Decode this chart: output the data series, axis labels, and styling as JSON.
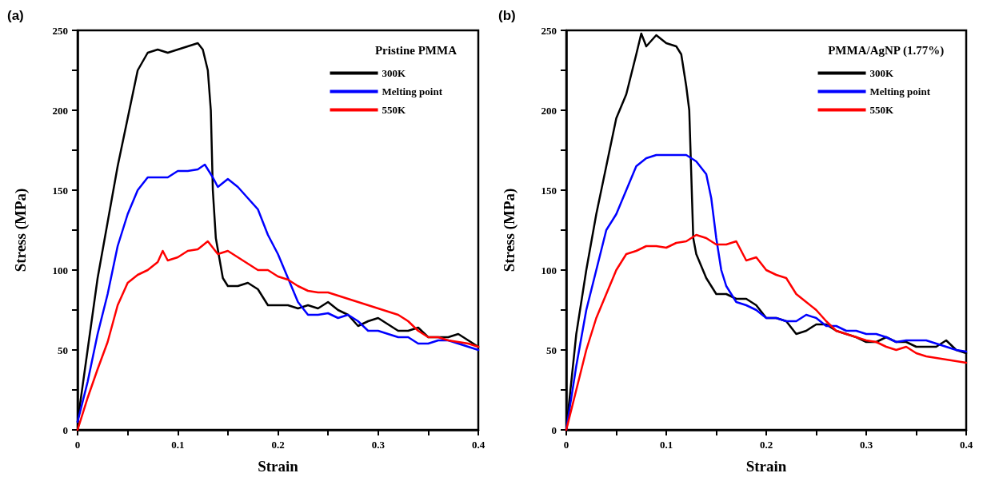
{
  "chart_data": [
    {
      "type": "line",
      "annotations": [
        "(a)"
      ],
      "legend_title": "Pristine PMMA",
      "xlabel": "Strain",
      "ylabel": "Stress (MPa)",
      "legend": "top right",
      "grid": false,
      "xlim": [
        0,
        0.4
      ],
      "xticks": [
        0,
        {
          "value": 0.05,
          "label": null
        },
        0.1,
        {
          "value": 0.15,
          "label": null
        },
        0.2,
        {
          "value": 0.25,
          "label": null
        },
        0.3,
        {
          "value": 0.35,
          "label": null
        },
        0.4
      ],
      "ylim": [
        0,
        250
      ],
      "yticks": [
        0,
        {
          "value": 25,
          "label": null
        },
        50,
        {
          "value": 75,
          "label": null
        },
        100,
        {
          "value": 125,
          "label": null
        },
        150,
        {
          "value": 175,
          "label": null
        },
        200,
        {
          "value": 225,
          "label": null
        },
        250
      ],
      "series": [
        {
          "name": "300K",
          "color": "#000000",
          "x": [
            0,
            0.01,
            0.02,
            0.03,
            0.04,
            0.05,
            0.06,
            0.07,
            0.08,
            0.09,
            0.1,
            0.11,
            0.12,
            0.125,
            0.13,
            0.133,
            0.135,
            0.138,
            0.145,
            0.15,
            0.16,
            0.17,
            0.18,
            0.19,
            0.2,
            0.21,
            0.22,
            0.23,
            0.24,
            0.25,
            0.26,
            0.27,
            0.28,
            0.29,
            0.3,
            0.31,
            0.32,
            0.33,
            0.34,
            0.35,
            0.36,
            0.37,
            0.38,
            0.39,
            0.4
          ],
          "values": [
            5,
            50,
            95,
            130,
            165,
            195,
            225,
            236,
            238,
            236,
            238,
            240,
            242,
            238,
            225,
            200,
            150,
            120,
            95,
            90,
            90,
            92,
            88,
            78,
            78,
            78,
            76,
            78,
            76,
            80,
            75,
            72,
            65,
            68,
            70,
            66,
            62,
            62,
            64,
            58,
            58,
            58,
            60,
            56,
            52
          ]
        },
        {
          "name": "Melting point",
          "color": "#0000ff",
          "x": [
            0,
            0.01,
            0.02,
            0.03,
            0.04,
            0.05,
            0.06,
            0.07,
            0.08,
            0.09,
            0.1,
            0.11,
            0.12,
            0.127,
            0.135,
            0.14,
            0.15,
            0.16,
            0.17,
            0.18,
            0.19,
            0.2,
            0.21,
            0.22,
            0.23,
            0.24,
            0.25,
            0.26,
            0.27,
            0.28,
            0.29,
            0.3,
            0.31,
            0.32,
            0.33,
            0.34,
            0.35,
            0.36,
            0.37,
            0.38,
            0.39,
            0.4
          ],
          "values": [
            5,
            30,
            60,
            85,
            115,
            135,
            150,
            158,
            158,
            158,
            162,
            162,
            163,
            166,
            158,
            152,
            157,
            152,
            145,
            138,
            122,
            110,
            95,
            80,
            72,
            72,
            73,
            70,
            72,
            68,
            62,
            62,
            60,
            58,
            58,
            54,
            54,
            56,
            56,
            54,
            52,
            50
          ]
        },
        {
          "name": "550K",
          "color": "#ff0000",
          "x": [
            0,
            0.01,
            0.02,
            0.03,
            0.04,
            0.05,
            0.06,
            0.07,
            0.08,
            0.085,
            0.09,
            0.1,
            0.11,
            0.12,
            0.13,
            0.14,
            0.15,
            0.16,
            0.17,
            0.18,
            0.19,
            0.2,
            0.21,
            0.22,
            0.23,
            0.24,
            0.25,
            0.26,
            0.27,
            0.28,
            0.29,
            0.3,
            0.31,
            0.32,
            0.33,
            0.34,
            0.35,
            0.36,
            0.37,
            0.38,
            0.39,
            0.4
          ],
          "values": [
            0,
            20,
            38,
            55,
            78,
            92,
            97,
            100,
            105,
            112,
            106,
            108,
            112,
            113,
            118,
            110,
            112,
            108,
            104,
            100,
            100,
            96,
            94,
            90,
            87,
            86,
            86,
            84,
            82,
            80,
            78,
            76,
            74,
            72,
            68,
            62,
            58,
            58,
            56,
            55,
            54,
            52
          ]
        }
      ]
    },
    {
      "type": "line",
      "annotations": [
        "(b)"
      ],
      "legend_title": "PMMA/AgNP (1.77%)",
      "xlabel": "Strain",
      "ylabel": "Stress (MPa)",
      "legend": "top right",
      "grid": false,
      "xlim": [
        0,
        0.4
      ],
      "xticks": [
        0,
        {
          "value": 0.05,
          "label": null
        },
        0.1,
        {
          "value": 0.15,
          "label": null
        },
        0.2,
        {
          "value": 0.25,
          "label": null
        },
        0.3,
        {
          "value": 0.35,
          "label": null
        },
        0.4
      ],
      "ylim": [
        0,
        250
      ],
      "yticks": [
        0,
        {
          "value": 25,
          "label": null
        },
        50,
        {
          "value": 75,
          "label": null
        },
        100,
        {
          "value": 125,
          "label": null
        },
        150,
        {
          "value": 175,
          "label": null
        },
        200,
        {
          "value": 225,
          "label": null
        },
        250
      ],
      "series": [
        {
          "name": "300K",
          "color": "#000000",
          "x": [
            0,
            0.01,
            0.02,
            0.03,
            0.04,
            0.05,
            0.06,
            0.07,
            0.075,
            0.08,
            0.09,
            0.1,
            0.11,
            0.115,
            0.12,
            0.123,
            0.125,
            0.127,
            0.13,
            0.14,
            0.15,
            0.16,
            0.17,
            0.18,
            0.19,
            0.2,
            0.21,
            0.22,
            0.23,
            0.24,
            0.25,
            0.26,
            0.27,
            0.28,
            0.29,
            0.3,
            0.31,
            0.32,
            0.33,
            0.34,
            0.35,
            0.36,
            0.37,
            0.38,
            0.39,
            0.4
          ],
          "values": [
            0,
            60,
            100,
            135,
            165,
            195,
            210,
            235,
            248,
            240,
            247,
            242,
            240,
            235,
            215,
            200,
            160,
            120,
            110,
            95,
            85,
            85,
            82,
            82,
            78,
            70,
            70,
            68,
            60,
            62,
            66,
            66,
            62,
            60,
            58,
            55,
            55,
            58,
            55,
            55,
            52,
            52,
            52,
            56,
            50,
            48
          ]
        },
        {
          "name": "Melting point",
          "color": "#0000ff",
          "x": [
            0,
            0.01,
            0.02,
            0.03,
            0.04,
            0.05,
            0.06,
            0.07,
            0.08,
            0.09,
            0.1,
            0.11,
            0.12,
            0.13,
            0.14,
            0.145,
            0.15,
            0.155,
            0.16,
            0.17,
            0.18,
            0.19,
            0.2,
            0.21,
            0.22,
            0.23,
            0.24,
            0.25,
            0.26,
            0.27,
            0.28,
            0.29,
            0.3,
            0.31,
            0.32,
            0.33,
            0.34,
            0.35,
            0.36,
            0.37,
            0.38,
            0.39,
            0.4
          ],
          "values": [
            0,
            40,
            75,
            100,
            125,
            135,
            150,
            165,
            170,
            172,
            172,
            172,
            172,
            168,
            160,
            145,
            120,
            100,
            90,
            80,
            78,
            75,
            70,
            70,
            68,
            68,
            72,
            70,
            65,
            65,
            62,
            62,
            60,
            60,
            58,
            55,
            56,
            56,
            56,
            54,
            52,
            50,
            49
          ]
        },
        {
          "name": "550K",
          "color": "#ff0000",
          "x": [
            0,
            0.01,
            0.02,
            0.03,
            0.04,
            0.05,
            0.06,
            0.07,
            0.08,
            0.09,
            0.1,
            0.11,
            0.12,
            0.13,
            0.14,
            0.15,
            0.16,
            0.17,
            0.18,
            0.19,
            0.2,
            0.21,
            0.22,
            0.23,
            0.24,
            0.25,
            0.26,
            0.27,
            0.28,
            0.29,
            0.3,
            0.31,
            0.32,
            0.33,
            0.34,
            0.35,
            0.36,
            0.37,
            0.38,
            0.39,
            0.4
          ],
          "values": [
            0,
            25,
            50,
            70,
            85,
            100,
            110,
            112,
            115,
            115,
            114,
            117,
            118,
            122,
            120,
            116,
            116,
            118,
            106,
            108,
            100,
            97,
            95,
            85,
            80,
            75,
            68,
            62,
            60,
            58,
            56,
            55,
            52,
            50,
            52,
            48,
            46,
            45,
            44,
            43,
            42
          ]
        }
      ]
    }
  ]
}
